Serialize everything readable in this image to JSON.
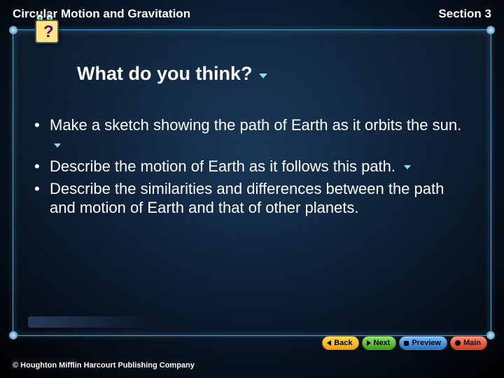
{
  "header": {
    "left": "Circular Motion and Gravitation",
    "right": "Section 3"
  },
  "question_icon": {
    "glyph": "?"
  },
  "title": "What do you think?",
  "bullets": [
    {
      "text": "Make a sketch showing the path of Earth as it orbits the sun.",
      "has_arrow": true
    },
    {
      "text": "Describe the motion of Earth as it follows this path.",
      "has_arrow": true
    },
    {
      "text": "Describe the similarities and differences between the path and motion of Earth and that of other planets.",
      "has_arrow": false
    }
  ],
  "nav": {
    "back": "Back",
    "next": "Next",
    "preview": "Preview",
    "main": "Main"
  },
  "copyright": "© Houghton Mifflin Harcourt Publishing Company",
  "colors": {
    "arrow": "#88d8ff",
    "border": "#5aa0c8",
    "text": "#ffffff"
  }
}
